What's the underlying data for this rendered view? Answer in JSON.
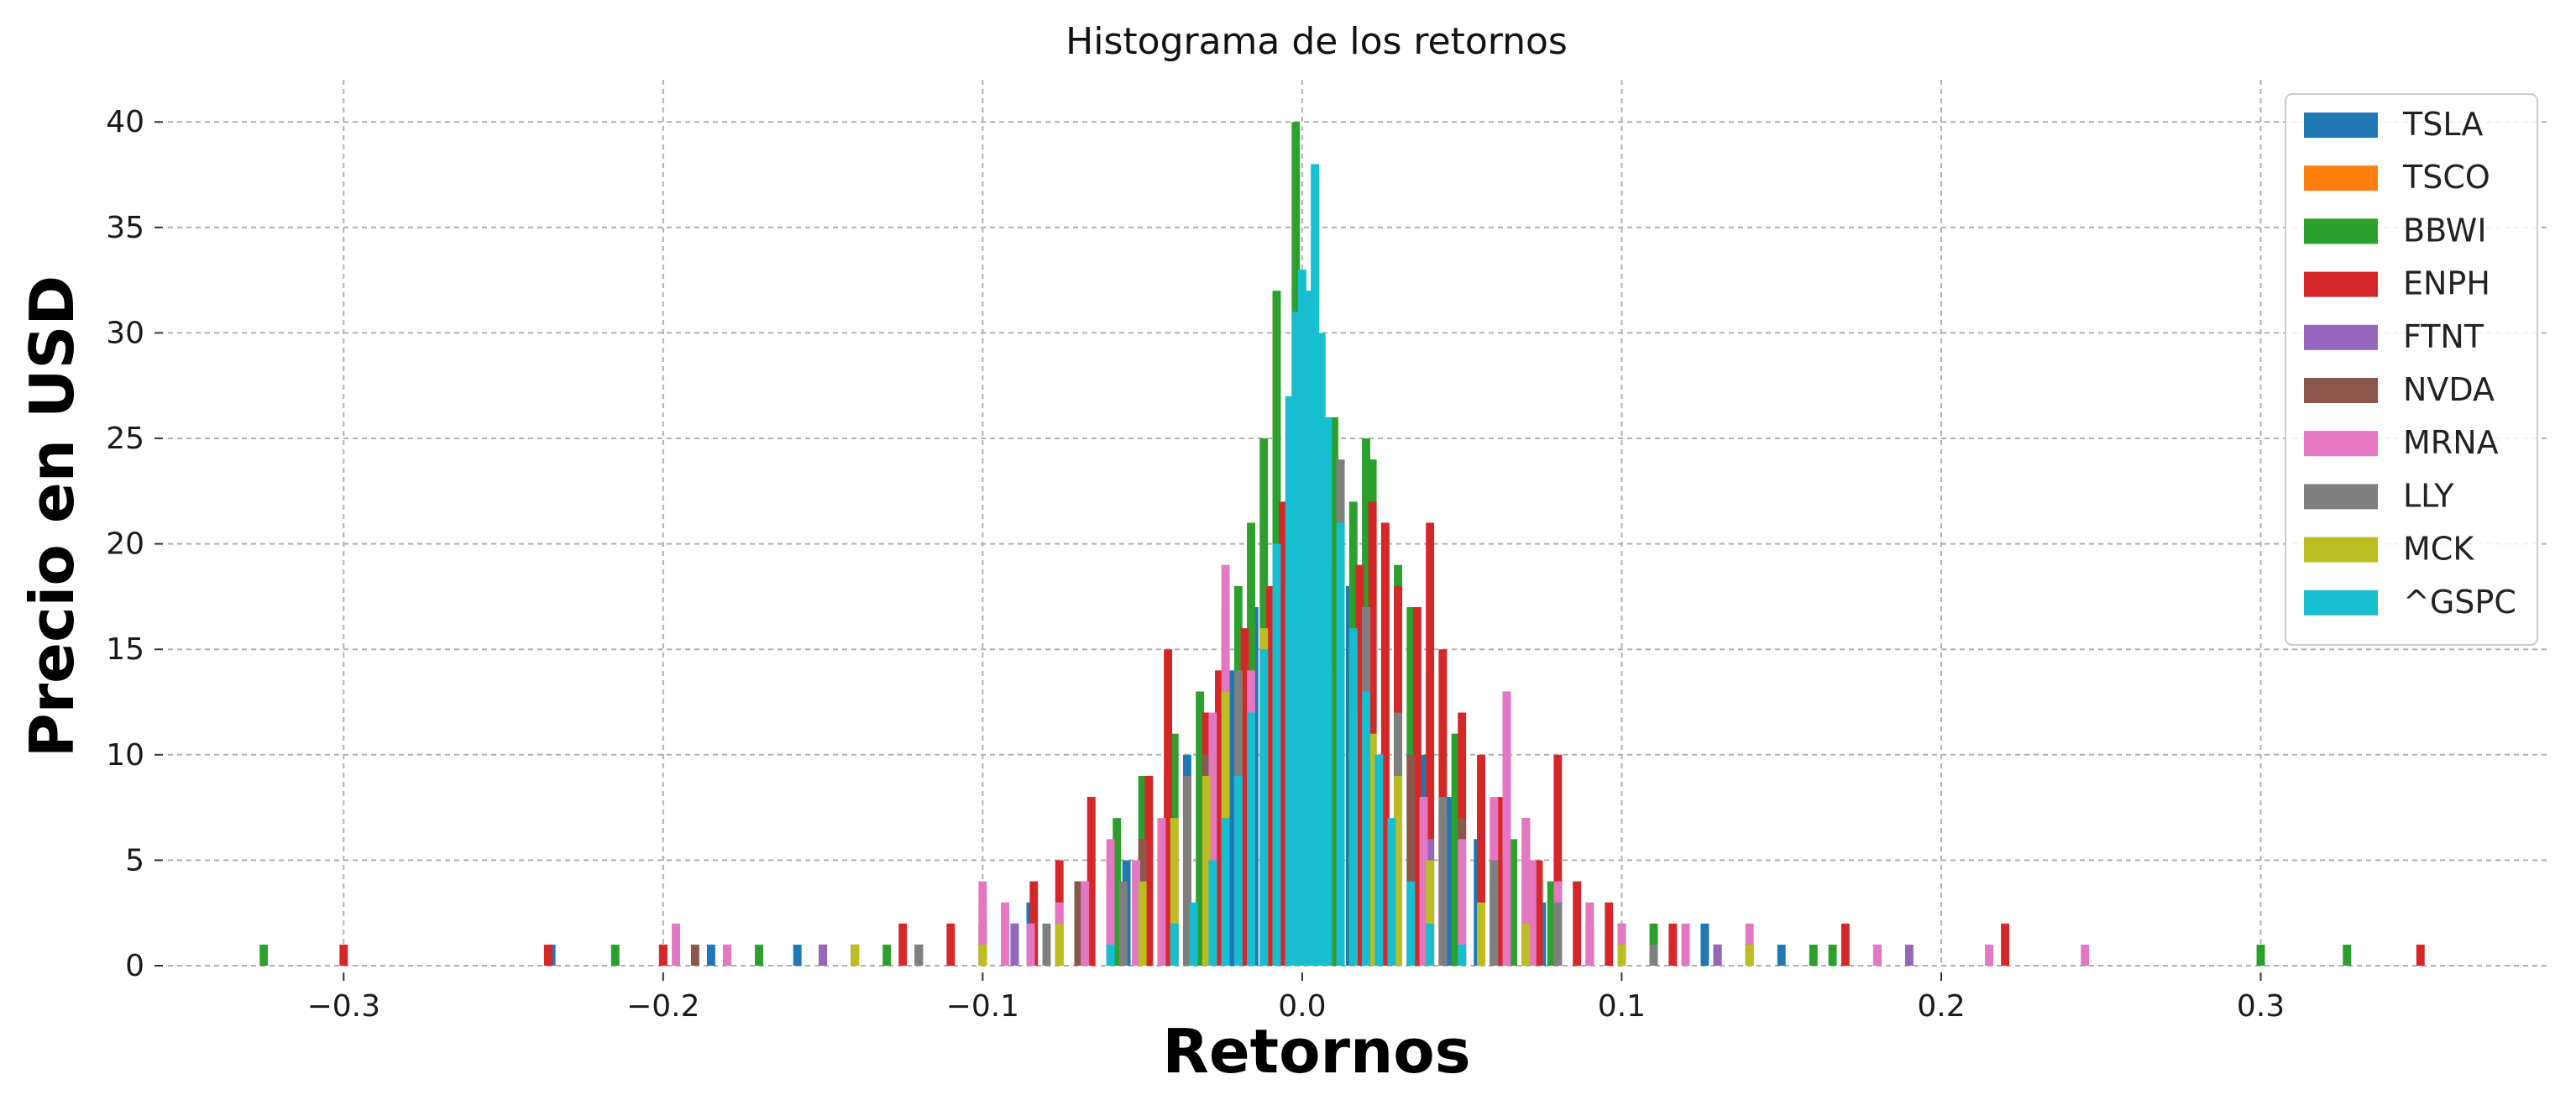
{
  "chart_data": {
    "type": "bar",
    "title": "Histograma de los retornos",
    "xlabel": "Retornos",
    "ylabel": "Precio en USD",
    "xlim": [
      -0.355,
      0.39
    ],
    "ylim": [
      0,
      42
    ],
    "xticks": [
      -0.3,
      -0.2,
      -0.1,
      0.0,
      0.1,
      0.2,
      0.3
    ],
    "xtick_labels": [
      "−0.3",
      "−0.2",
      "−0.1",
      "0.0",
      "0.1",
      "0.2",
      "0.3"
    ],
    "yticks": [
      0,
      5,
      10,
      15,
      20,
      25,
      30,
      35,
      40
    ],
    "ytick_labels": [
      "0",
      "5",
      "10",
      "15",
      "20",
      "25",
      "30",
      "35",
      "40"
    ],
    "grid": true,
    "legend_position": "top-right",
    "bin_width": 0.0026,
    "series": [
      {
        "name": "TSLA",
        "color": "#1f77b4",
        "bins": [
          [
            -0.235,
            1
          ],
          [
            -0.2,
            1
          ],
          [
            -0.185,
            1
          ],
          [
            -0.158,
            1
          ],
          [
            -0.12,
            1
          ],
          [
            -0.1,
            2
          ],
          [
            -0.085,
            3
          ],
          [
            -0.07,
            4
          ],
          [
            -0.055,
            5
          ],
          [
            -0.048,
            7
          ],
          [
            -0.042,
            9
          ],
          [
            -0.036,
            10
          ],
          [
            -0.03,
            12
          ],
          [
            -0.022,
            14
          ],
          [
            -0.015,
            17
          ],
          [
            -0.008,
            20
          ],
          [
            0.0,
            22
          ],
          [
            0.008,
            20
          ],
          [
            0.015,
            18
          ],
          [
            0.022,
            15
          ],
          [
            0.03,
            12
          ],
          [
            0.038,
            10
          ],
          [
            0.046,
            8
          ],
          [
            0.055,
            6
          ],
          [
            0.065,
            4
          ],
          [
            0.075,
            3
          ],
          [
            0.09,
            2
          ],
          [
            0.11,
            1
          ],
          [
            0.126,
            2
          ],
          [
            0.15,
            1
          ],
          [
            0.18,
            1
          ]
        ]
      },
      {
        "name": "TSCO",
        "color": "#ff7f0e",
        "bins": [
          [
            -0.06,
            1
          ],
          [
            -0.04,
            2
          ],
          [
            -0.025,
            3
          ],
          [
            -0.01,
            4
          ],
          [
            0.0,
            5
          ],
          [
            0.012,
            4
          ],
          [
            0.025,
            3
          ],
          [
            0.04,
            2
          ],
          [
            0.06,
            1
          ]
        ]
      },
      {
        "name": "BBWI",
        "color": "#2ca02c",
        "bins": [
          [
            -0.325,
            1
          ],
          [
            -0.215,
            1
          ],
          [
            -0.17,
            1
          ],
          [
            -0.13,
            1
          ],
          [
            -0.09,
            2
          ],
          [
            -0.07,
            4
          ],
          [
            -0.058,
            7
          ],
          [
            -0.05,
            9
          ],
          [
            -0.04,
            11
          ],
          [
            -0.032,
            13
          ],
          [
            -0.024,
            17
          ],
          [
            -0.02,
            18
          ],
          [
            -0.016,
            21
          ],
          [
            -0.012,
            25
          ],
          [
            -0.008,
            32
          ],
          [
            -0.002,
            40
          ],
          [
            0.004,
            30
          ],
          [
            0.01,
            26
          ],
          [
            0.016,
            22
          ],
          [
            0.02,
            25
          ],
          [
            0.022,
            24
          ],
          [
            0.026,
            21
          ],
          [
            0.03,
            19
          ],
          [
            0.034,
            17
          ],
          [
            0.04,
            14
          ],
          [
            0.048,
            11
          ],
          [
            0.056,
            8
          ],
          [
            0.066,
            6
          ],
          [
            0.078,
            4
          ],
          [
            0.09,
            3
          ],
          [
            0.11,
            2
          ],
          [
            0.13,
            1
          ],
          [
            0.16,
            1
          ],
          [
            0.166,
            1
          ],
          [
            0.3,
            1
          ],
          [
            0.327,
            1
          ]
        ]
      },
      {
        "name": "ENPH",
        "color": "#d62728",
        "bins": [
          [
            -0.3,
            1
          ],
          [
            -0.236,
            1
          ],
          [
            -0.2,
            1
          ],
          [
            -0.15,
            1
          ],
          [
            -0.125,
            2
          ],
          [
            -0.11,
            2
          ],
          [
            -0.1,
            3
          ],
          [
            -0.084,
            4
          ],
          [
            -0.076,
            5
          ],
          [
            -0.066,
            8
          ],
          [
            -0.048,
            9
          ],
          [
            -0.042,
            15
          ],
          [
            -0.03,
            12
          ],
          [
            -0.026,
            14
          ],
          [
            -0.018,
            16
          ],
          [
            -0.01,
            18
          ],
          [
            -0.006,
            22
          ],
          [
            0.004,
            21
          ],
          [
            0.012,
            22
          ],
          [
            0.018,
            19
          ],
          [
            0.022,
            22
          ],
          [
            0.026,
            21
          ],
          [
            0.03,
            18
          ],
          [
            0.036,
            17
          ],
          [
            0.04,
            21
          ],
          [
            0.044,
            15
          ],
          [
            0.05,
            12
          ],
          [
            0.056,
            10
          ],
          [
            0.062,
            8
          ],
          [
            0.07,
            7
          ],
          [
            0.074,
            5
          ],
          [
            0.08,
            10
          ],
          [
            0.086,
            4
          ],
          [
            0.096,
            3
          ],
          [
            0.116,
            2
          ],
          [
            0.13,
            1
          ],
          [
            0.17,
            2
          ],
          [
            0.22,
            2
          ],
          [
            0.35,
            1
          ]
        ]
      },
      {
        "name": "FTNT",
        "color": "#9467bd",
        "bins": [
          [
            -0.18,
            1
          ],
          [
            -0.15,
            1
          ],
          [
            -0.12,
            1
          ],
          [
            -0.09,
            2
          ],
          [
            -0.06,
            4
          ],
          [
            -0.04,
            6
          ],
          [
            -0.02,
            9
          ],
          [
            0.0,
            14
          ],
          [
            0.02,
            9
          ],
          [
            0.04,
            6
          ],
          [
            0.06,
            4
          ],
          [
            0.09,
            2
          ],
          [
            0.13,
            1
          ],
          [
            0.19,
            1
          ]
        ]
      },
      {
        "name": "NVDA",
        "color": "#8c564b",
        "bins": [
          [
            -0.19,
            1
          ],
          [
            -0.14,
            1
          ],
          [
            -0.1,
            2
          ],
          [
            -0.07,
            4
          ],
          [
            -0.05,
            6
          ],
          [
            -0.03,
            10
          ],
          [
            -0.016,
            14
          ],
          [
            -0.004,
            22
          ],
          [
            0.008,
            19
          ],
          [
            0.02,
            14
          ],
          [
            0.034,
            10
          ],
          [
            0.05,
            7
          ],
          [
            0.07,
            4
          ],
          [
            0.1,
            2
          ],
          [
            0.14,
            1
          ]
        ]
      },
      {
        "name": "MRNA",
        "color": "#e377c2",
        "bins": [
          [
            -0.196,
            2
          ],
          [
            -0.18,
            1
          ],
          [
            -0.14,
            1
          ],
          [
            -0.1,
            4
          ],
          [
            -0.093,
            3
          ],
          [
            -0.085,
            2
          ],
          [
            -0.076,
            3
          ],
          [
            -0.068,
            4
          ],
          [
            -0.06,
            6
          ],
          [
            -0.052,
            5
          ],
          [
            -0.044,
            7
          ],
          [
            -0.036,
            9
          ],
          [
            -0.028,
            12
          ],
          [
            -0.024,
            19
          ],
          [
            -0.016,
            14
          ],
          [
            -0.008,
            13
          ],
          [
            0.0,
            15
          ],
          [
            0.008,
            14
          ],
          [
            0.016,
            12
          ],
          [
            0.024,
            10
          ],
          [
            0.03,
            9
          ],
          [
            0.038,
            8
          ],
          [
            0.044,
            7
          ],
          [
            0.05,
            6
          ],
          [
            0.06,
            8
          ],
          [
            0.064,
            13
          ],
          [
            0.07,
            7
          ],
          [
            0.072,
            5
          ],
          [
            0.08,
            4
          ],
          [
            0.09,
            3
          ],
          [
            0.1,
            2
          ],
          [
            0.12,
            2
          ],
          [
            0.14,
            2
          ],
          [
            0.18,
            1
          ],
          [
            0.215,
            1
          ],
          [
            0.245,
            1
          ]
        ]
      },
      {
        "name": "LLY",
        "color": "#7f7f7f",
        "bins": [
          [
            -0.12,
            1
          ],
          [
            -0.08,
            2
          ],
          [
            -0.056,
            4
          ],
          [
            -0.036,
            9
          ],
          [
            -0.02,
            14
          ],
          [
            -0.008,
            20
          ],
          [
            0.0,
            25
          ],
          [
            0.004,
            28
          ],
          [
            0.012,
            24
          ],
          [
            0.02,
            17
          ],
          [
            0.03,
            12
          ],
          [
            0.044,
            8
          ],
          [
            0.06,
            5
          ],
          [
            0.08,
            3
          ],
          [
            0.11,
            1
          ]
        ]
      },
      {
        "name": "MCK",
        "color": "#bcbd22",
        "bins": [
          [
            -0.14,
            1
          ],
          [
            -0.1,
            1
          ],
          [
            -0.076,
            2
          ],
          [
            -0.05,
            4
          ],
          [
            -0.04,
            7
          ],
          [
            -0.03,
            9
          ],
          [
            -0.024,
            13
          ],
          [
            -0.012,
            16
          ],
          [
            -0.004,
            18
          ],
          [
            0.006,
            17
          ],
          [
            0.016,
            15
          ],
          [
            0.022,
            11
          ],
          [
            0.03,
            9
          ],
          [
            0.04,
            5
          ],
          [
            0.056,
            3
          ],
          [
            0.07,
            2
          ],
          [
            0.1,
            1
          ],
          [
            0.14,
            1
          ]
        ]
      },
      {
        "name": "^GSPC",
        "color": "#17becf",
        "bins": [
          [
            -0.06,
            1
          ],
          [
            -0.04,
            2
          ],
          [
            -0.034,
            3
          ],
          [
            -0.028,
            5
          ],
          [
            -0.024,
            7
          ],
          [
            -0.02,
            9
          ],
          [
            -0.016,
            12
          ],
          [
            -0.012,
            15
          ],
          [
            -0.008,
            20
          ],
          [
            -0.004,
            27
          ],
          [
            -0.002,
            31
          ],
          [
            0.0,
            33
          ],
          [
            0.002,
            32
          ],
          [
            0.004,
            38
          ],
          [
            0.006,
            30
          ],
          [
            0.008,
            26
          ],
          [
            0.012,
            21
          ],
          [
            0.016,
            16
          ],
          [
            0.02,
            13
          ],
          [
            0.024,
            10
          ],
          [
            0.028,
            7
          ],
          [
            0.034,
            4
          ],
          [
            0.04,
            2
          ],
          [
            0.05,
            1
          ]
        ]
      }
    ]
  }
}
